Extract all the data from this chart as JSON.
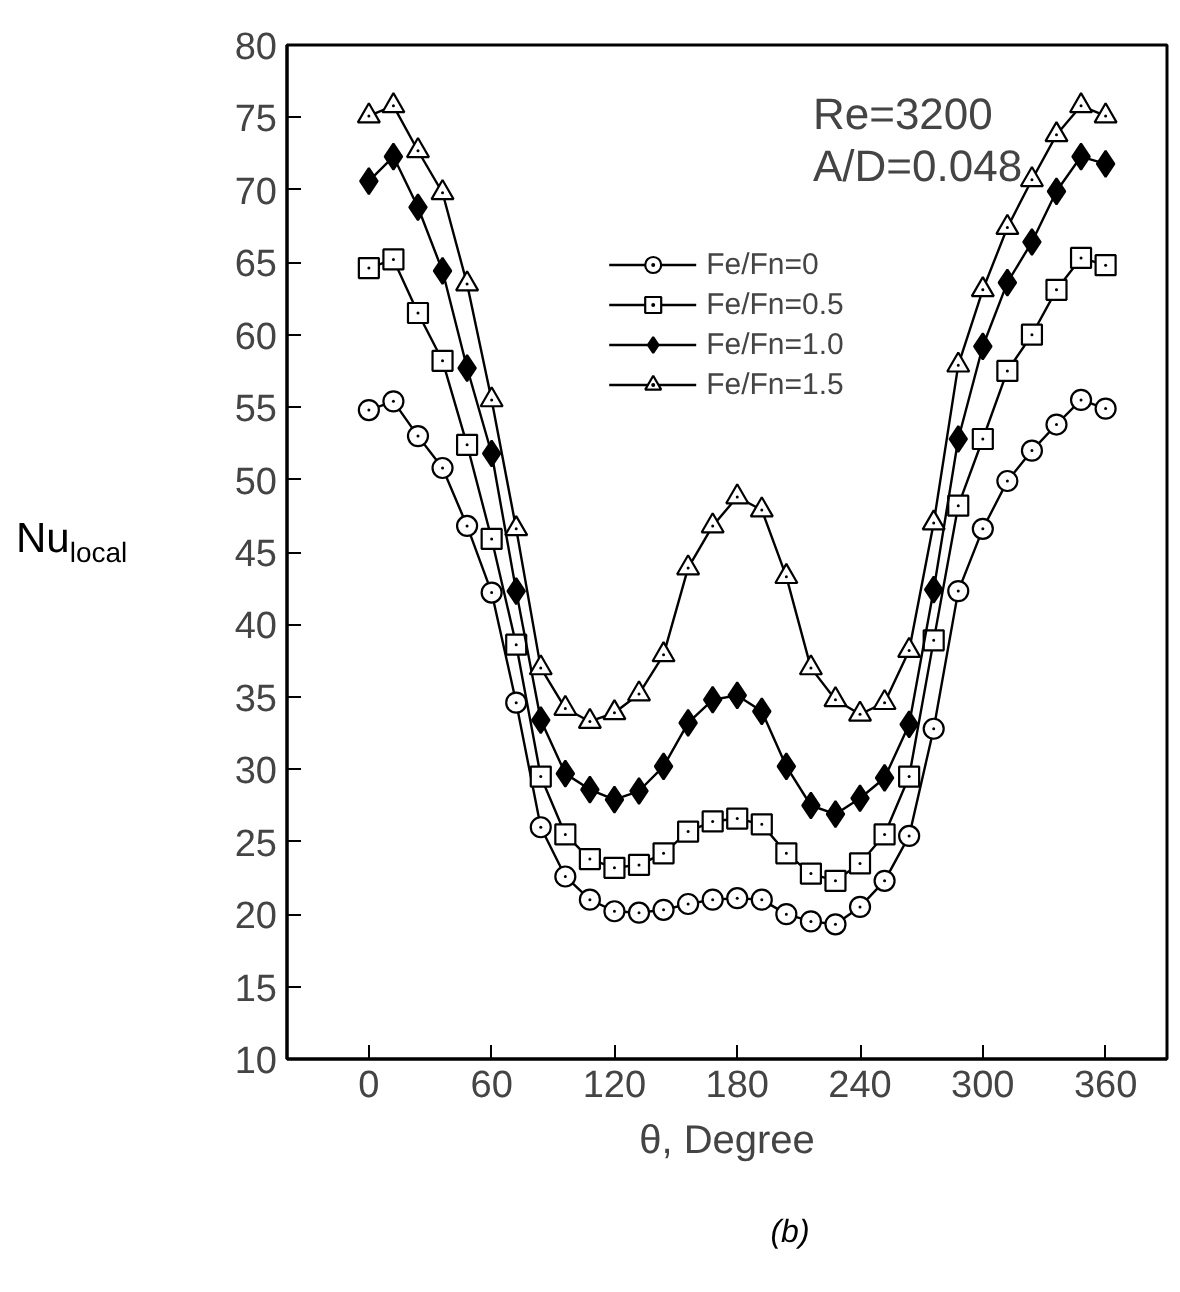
{
  "chart_data": {
    "type": "line",
    "xlabel": "θ, Degree",
    "ylabel": "Nu$_{local}$",
    "annotations": [
      "Re=3200",
      "A/D=0.048",
      "(b)"
    ],
    "x": [
      0,
      12,
      24,
      36,
      48,
      60,
      72,
      84,
      96,
      108,
      120,
      132,
      144,
      156,
      168,
      180,
      192,
      204,
      216,
      228,
      240,
      252,
      264,
      276,
      288,
      300,
      312,
      324,
      336,
      348,
      360
    ],
    "series": [
      {
        "name": "Fe/Fn=0",
        "color": "#000000",
        "marker": "circle",
        "values": [
          54.8,
          55.4,
          53.0,
          50.8,
          46.8,
          42.2,
          34.6,
          26.0,
          22.6,
          21.0,
          20.2,
          20.1,
          20.3,
          20.7,
          21.0,
          21.1,
          21.0,
          20.0,
          19.5,
          19.3,
          20.5,
          22.3,
          25.4,
          32.8,
          42.3,
          46.6,
          49.9,
          52.0,
          53.8,
          55.5,
          54.9
        ]
      },
      {
        "name": "Fe/Fn=0.5",
        "color": "#000000",
        "marker": "square",
        "values": [
          64.6,
          65.2,
          61.5,
          58.2,
          52.4,
          45.9,
          38.6,
          29.5,
          25.5,
          23.8,
          23.2,
          23.4,
          24.2,
          25.7,
          26.4,
          26.6,
          26.2,
          24.2,
          22.8,
          22.3,
          23.5,
          25.5,
          29.5,
          38.9,
          48.2,
          52.8,
          57.5,
          60.0,
          63.1,
          65.3,
          64.8
        ]
      },
      {
        "name": "Fe/Fn=1.0",
        "color": "#000000",
        "marker": "diamond",
        "values": [
          70.6,
          72.3,
          68.8,
          64.4,
          57.7,
          51.8,
          42.3,
          33.4,
          29.7,
          28.6,
          27.9,
          28.5,
          30.2,
          33.2,
          34.8,
          35.1,
          34.0,
          30.2,
          27.5,
          26.9,
          28.0,
          29.4,
          33.1,
          42.4,
          52.8,
          59.2,
          63.6,
          66.4,
          69.9,
          72.3,
          71.8
        ]
      },
      {
        "name": "Fe/Fn=1.5",
        "color": "#000000",
        "marker": "triangle",
        "values": [
          75.1,
          75.8,
          72.7,
          69.8,
          63.5,
          55.5,
          46.6,
          37.0,
          34.2,
          33.3,
          33.9,
          35.2,
          37.9,
          43.9,
          46.8,
          48.8,
          47.9,
          43.3,
          37.0,
          34.8,
          33.8,
          34.6,
          38.2,
          47.0,
          57.9,
          63.1,
          67.4,
          70.7,
          73.8,
          75.8,
          75.1
        ]
      }
    ],
    "xlim": [
      -40,
      390
    ],
    "xticks": [
      0,
      60,
      120,
      180,
      240,
      300,
      360
    ],
    "ylim": [
      10,
      80
    ],
    "yticks": [
      10,
      15,
      20,
      25,
      30,
      35,
      40,
      45,
      50,
      55,
      60,
      65,
      70,
      75,
      80
    ],
    "grid": false,
    "legend": "top",
    "line_style": "solid"
  }
}
